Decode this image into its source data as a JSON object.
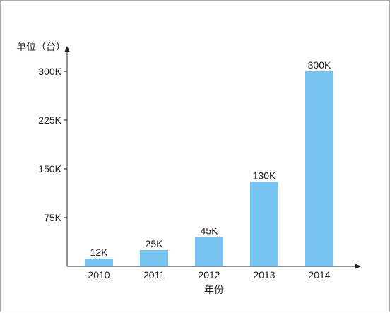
{
  "chart_data": {
    "type": "bar",
    "categories": [
      "2010",
      "2011",
      "2012",
      "2013",
      "2014"
    ],
    "values": [
      12,
      25,
      45,
      130,
      300
    ],
    "data_labels": [
      "12K",
      "25K",
      "45K",
      "130K",
      "300K"
    ],
    "ylabel": "单位（台）",
    "xlabel": "年份",
    "yticks": [
      {
        "value": 75,
        "label": "75K"
      },
      {
        "value": 150,
        "label": "150K"
      },
      {
        "value": 225,
        "label": "225K"
      },
      {
        "value": 300,
        "label": "300K"
      }
    ],
    "ylim": [
      0,
      300
    ],
    "grid": false,
    "bar_color": "#77c3ef",
    "axis_color": "#222222"
  }
}
